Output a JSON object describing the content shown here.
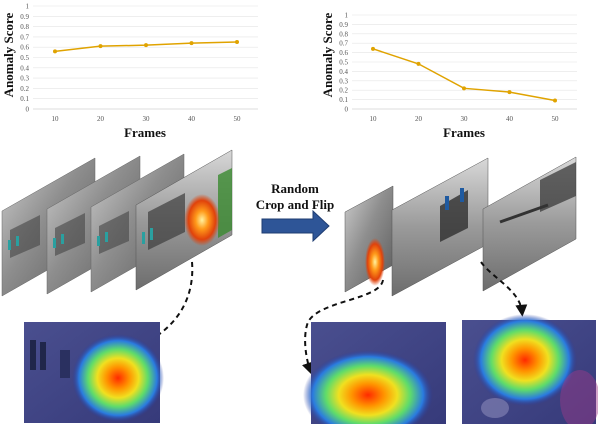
{
  "chart_data": [
    {
      "type": "line",
      "x": [
        10,
        20,
        30,
        40,
        50
      ],
      "values": [
        0.56,
        0.61,
        0.62,
        0.64,
        0.65
      ],
      "ylim": [
        0,
        1
      ],
      "yticks": [
        "0",
        "0.1",
        "0.2",
        "0.3",
        "0.4",
        "0.5",
        "0.6",
        "0.7",
        "0.8",
        "0.9",
        "1"
      ],
      "xticks": [
        "10",
        "20",
        "30",
        "40",
        "50"
      ],
      "xlabel": "Frames",
      "ylabel": "Anomaly Score",
      "color": "#e0a300",
      "grid": true
    },
    {
      "type": "line",
      "x": [
        10,
        20,
        30,
        40,
        50
      ],
      "values": [
        0.64,
        0.48,
        0.22,
        0.18,
        0.09
      ],
      "ylim": [
        0,
        1
      ],
      "yticks": [
        "0",
        "0.1",
        "0.2",
        "0.3",
        "0.4",
        "0.5",
        "0.6",
        "0.7",
        "0.8",
        "0.9",
        "1"
      ],
      "xticks": [
        "10",
        "20",
        "30",
        "40",
        "50"
      ],
      "xlabel": "Frames",
      "ylabel": "Anomaly Score",
      "color": "#e0a300",
      "grid": true
    }
  ],
  "transform": {
    "label_line1": "Random",
    "label_line2": "Crop and Flip",
    "arrow_color": "#2e5597"
  },
  "frame_images": {
    "left_stack": [
      "video-frame",
      "video-frame",
      "video-frame",
      "video-frame-fire"
    ],
    "right_stack": [
      "cropped-frame-fire",
      "cropped-frame-people",
      "cropped-frame-street"
    ],
    "heatmaps": [
      "heatmap-left",
      "heatmap-right-1",
      "heatmap-right-2"
    ]
  }
}
